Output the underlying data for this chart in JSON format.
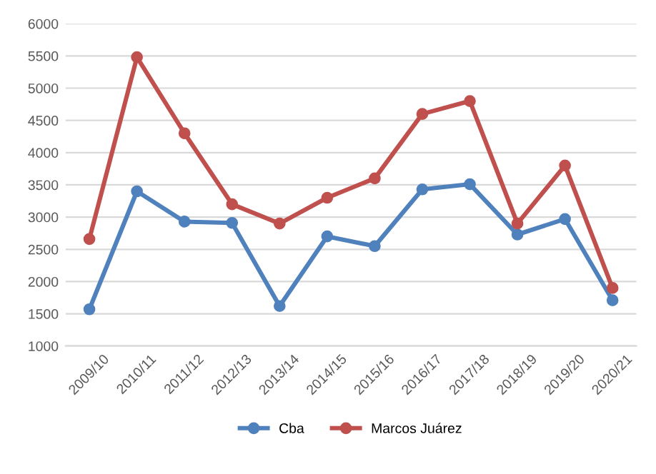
{
  "chart_data": {
    "type": "line",
    "categories": [
      "2009/10",
      "2010/11",
      "2011/12",
      "2012/13",
      "2013/14",
      "2014/15",
      "2015/16",
      "2016/17",
      "2017/18",
      "2018/19",
      "2019/20",
      "2020/21"
    ],
    "series": [
      {
        "name": "Cba",
        "color": "#4f81bd",
        "values": [
          1570,
          3400,
          2930,
          2910,
          1620,
          2700,
          2550,
          3430,
          3510,
          2730,
          2970,
          1710
        ]
      },
      {
        "name": "Marcos Juárez",
        "color": "#c0504d",
        "values": [
          2660,
          5480,
          4300,
          3200,
          2900,
          3300,
          3600,
          4600,
          4800,
          2900,
          3800,
          1900
        ]
      }
    ],
    "ylim": [
      1000,
      6000
    ],
    "yticks": [
      1000,
      1500,
      2000,
      2500,
      3000,
      3500,
      4000,
      4500,
      5000,
      5500,
      6000
    ],
    "grid": "y",
    "legend": "bottom",
    "marker": "circle",
    "line_style": "solid"
  }
}
